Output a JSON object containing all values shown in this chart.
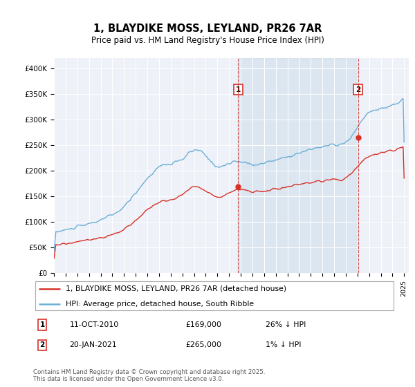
{
  "title": "1, BLAYDIKE MOSS, LEYLAND, PR26 7AR",
  "subtitle": "Price paid vs. HM Land Registry's House Price Index (HPI)",
  "ylim": [
    0,
    420000
  ],
  "yticks": [
    0,
    50000,
    100000,
    150000,
    200000,
    250000,
    300000,
    350000,
    400000
  ],
  "ytick_labels": [
    "£0",
    "£50K",
    "£100K",
    "£150K",
    "£200K",
    "£250K",
    "£300K",
    "£350K",
    "£400K"
  ],
  "hpi_color": "#6baed6",
  "price_color": "#d73027",
  "sale1_year": 2010.79,
  "sale1_price": 169000,
  "sale2_year": 2021.05,
  "sale2_price": 265000,
  "annotation1_date": "11-OCT-2010",
  "annotation1_price": "£169,000",
  "annotation1_hpi": "26% ↓ HPI",
  "annotation2_date": "20-JAN-2021",
  "annotation2_price": "£265,000",
  "annotation2_hpi": "1% ↓ HPI",
  "legend_label1": "1, BLAYDIKE MOSS, LEYLAND, PR26 7AR (detached house)",
  "legend_label2": "HPI: Average price, detached house, South Ribble",
  "footer": "Contains HM Land Registry data © Crown copyright and database right 2025.\nThis data is licensed under the Open Government Licence v3.0.",
  "background_color": "#ffffff",
  "plot_bg_color": "#eef2f8",
  "hpi_years": [
    1995,
    1996,
    1997,
    1998,
    1999,
    2000,
    2001,
    2002,
    2003,
    2004,
    2005,
    2006,
    2007,
    2008,
    2009,
    2010,
    2011,
    2012,
    2013,
    2014,
    2015,
    2016,
    2017,
    2018,
    2019,
    2020,
    2021,
    2022,
    2023,
    2024,
    2025
  ],
  "hpi_values": [
    80000,
    84000,
    90000,
    96000,
    104000,
    114000,
    130000,
    158000,
    185000,
    208000,
    213000,
    223000,
    240000,
    228000,
    208000,
    214000,
    217000,
    212000,
    215000,
    221000,
    228000,
    234000,
    242000,
    247000,
    250000,
    255000,
    285000,
    315000,
    320000,
    328000,
    340000
  ],
  "price_years": [
    1995,
    1996,
    1997,
    1998,
    1999,
    2000,
    2001,
    2002,
    2003,
    2004,
    2005,
    2006,
    2007,
    2008,
    2009,
    2010,
    2011,
    2012,
    2013,
    2014,
    2015,
    2016,
    2017,
    2018,
    2019,
    2020,
    2021,
    2022,
    2023,
    2024,
    2025
  ],
  "price_values": [
    55000,
    57000,
    61000,
    65000,
    69000,
    75000,
    85000,
    104000,
    124000,
    138000,
    143000,
    154000,
    168000,
    160000,
    150000,
    156000,
    163000,
    159000,
    160000,
    164000,
    168000,
    172000,
    176000,
    180000,
    182000,
    186000,
    210000,
    228000,
    234000,
    240000,
    248000
  ]
}
